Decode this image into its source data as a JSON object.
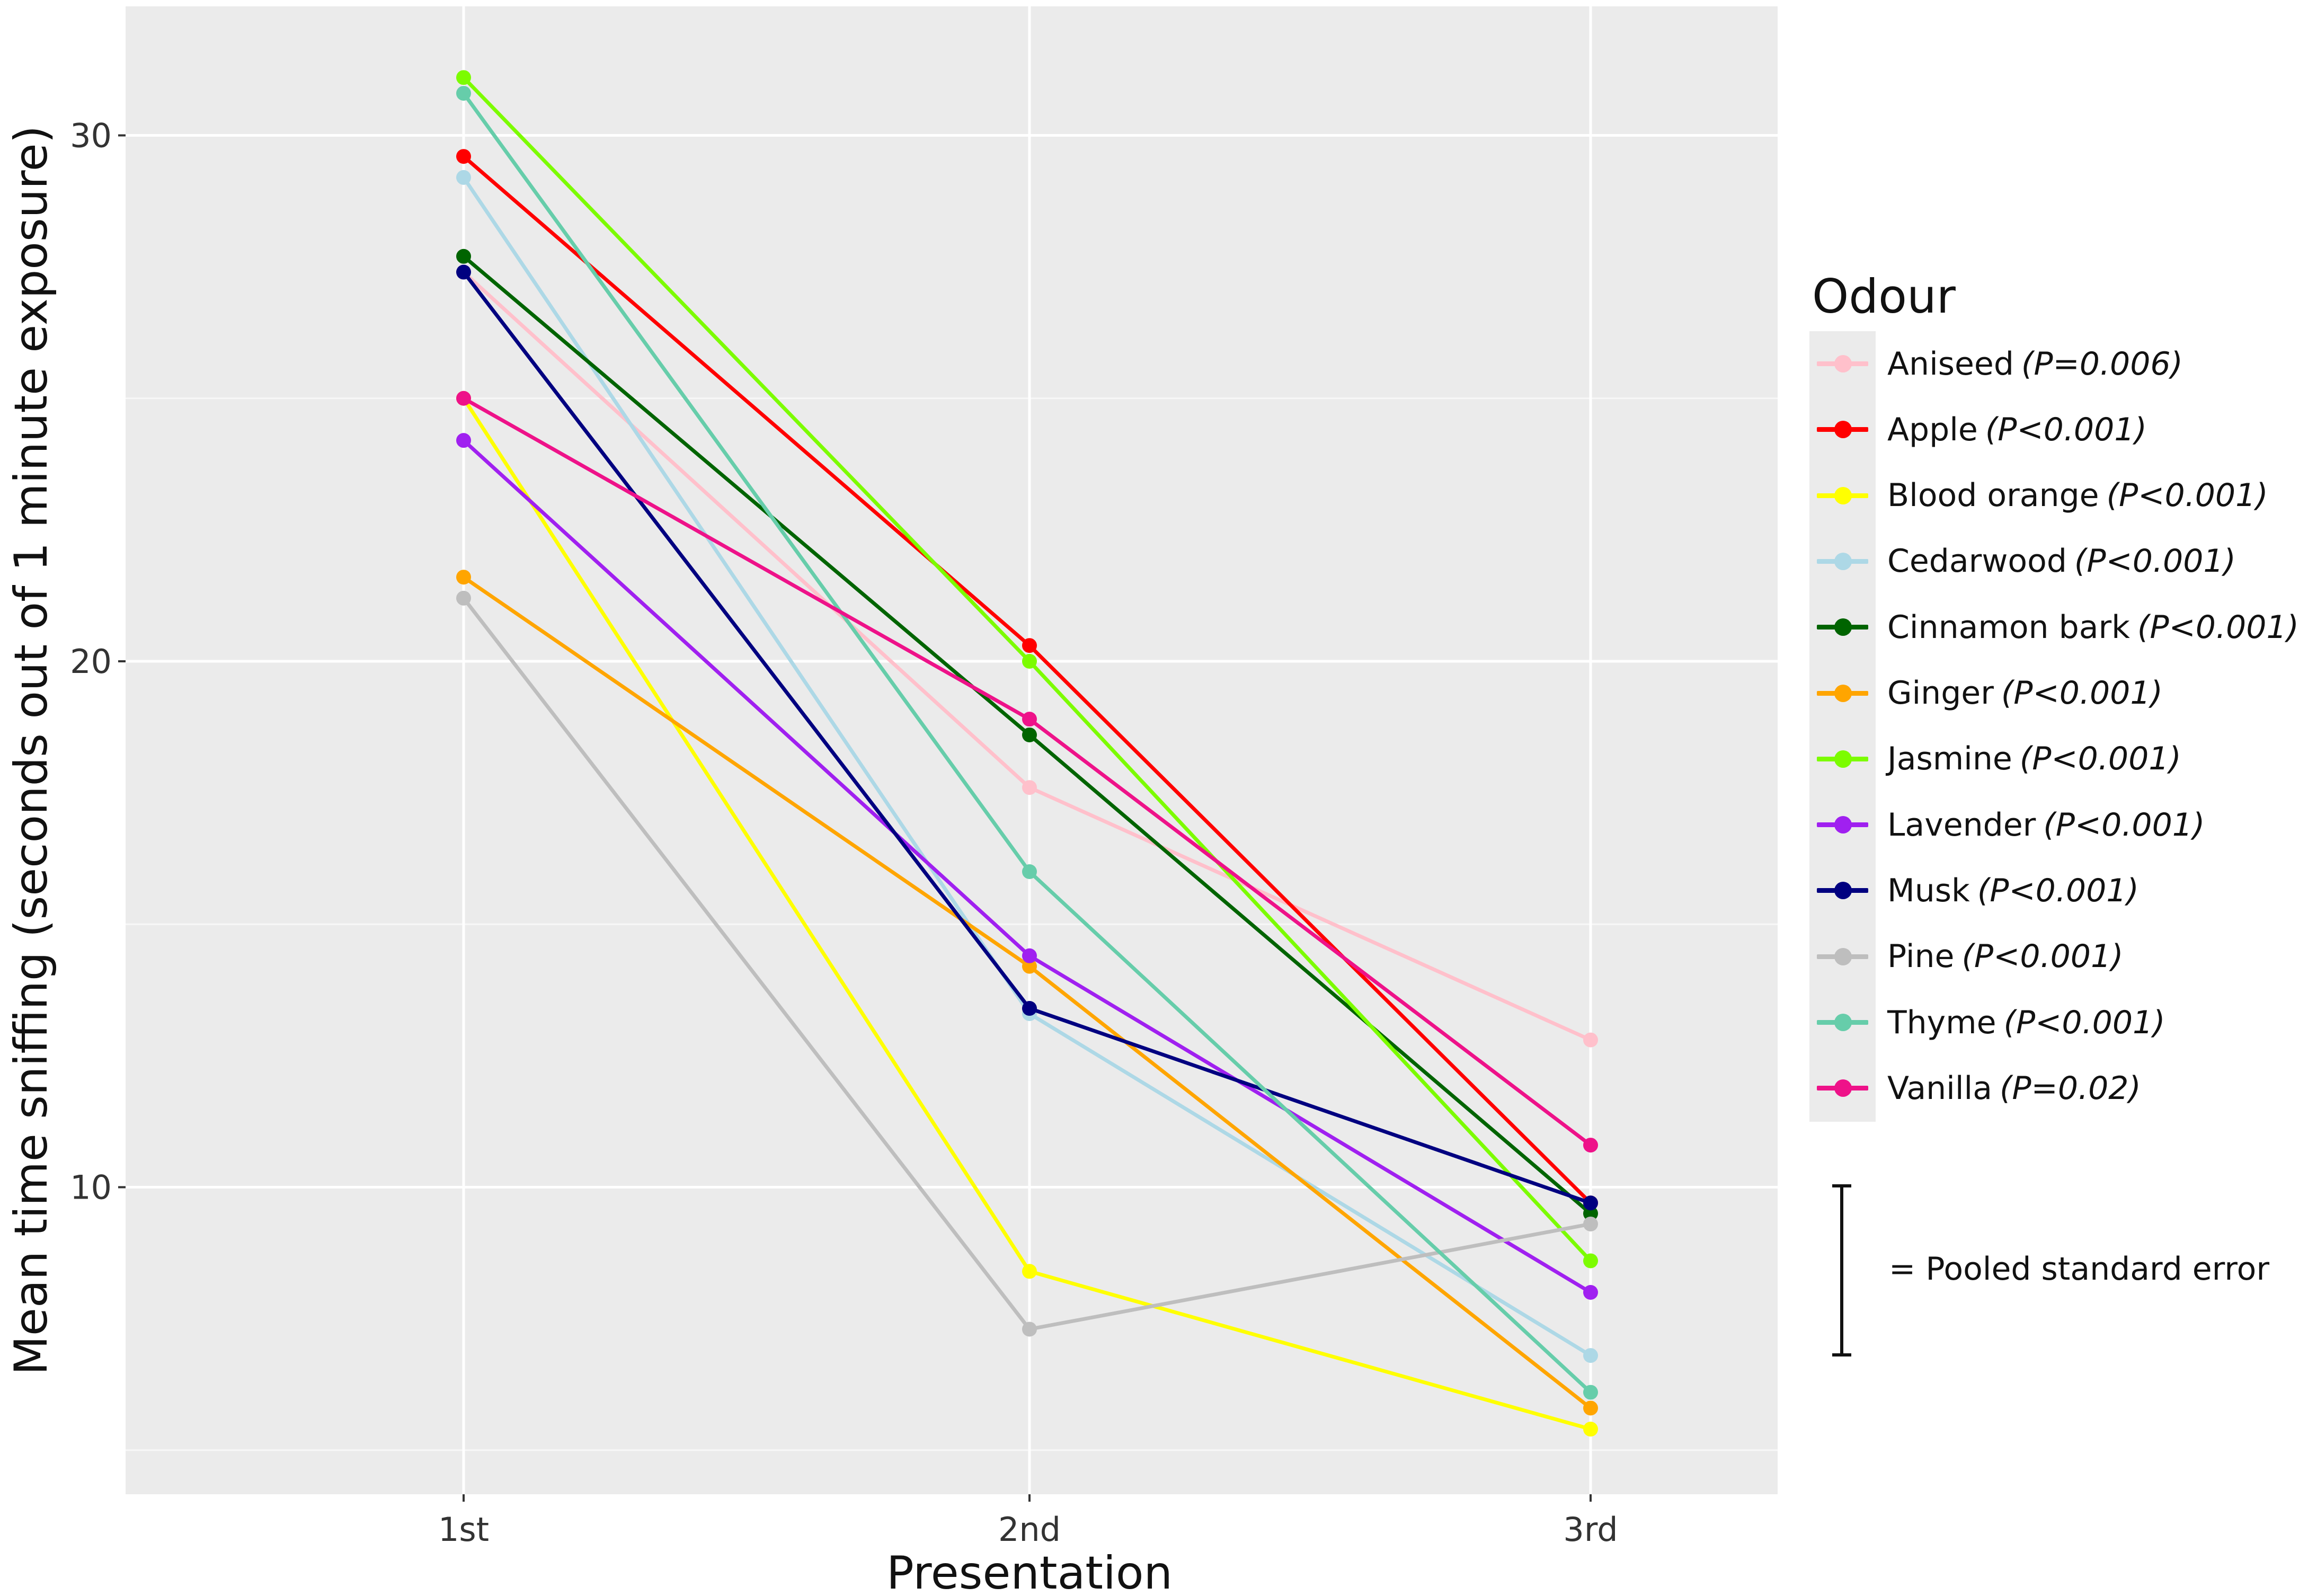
{
  "chart_data": {
    "type": "line",
    "title": "",
    "xlabel": "Presentation",
    "ylabel": "Mean time sniffing (seconds out of 1 minute exposure)",
    "categories": [
      "1st",
      "2nd",
      "3rd"
    ],
    "y_ticks": [
      10,
      20,
      30
    ],
    "ylim": [
      4.5,
      32.5
    ],
    "grid": true,
    "legend_position": "right",
    "legend_title": "Odour",
    "series": [
      {
        "name": "Aniseed",
        "p": "(P=0.006)",
        "color": "#FFC0CB",
        "values": [
          27.4,
          17.6,
          12.8
        ]
      },
      {
        "name": "Apple",
        "p": "(P<0.001)",
        "color": "#FF0000",
        "values": [
          29.6,
          20.3,
          9.7
        ]
      },
      {
        "name": "Blood orange",
        "p": "(P<0.001)",
        "color": "#FFFF00",
        "values": [
          25.0,
          8.4,
          5.4
        ]
      },
      {
        "name": "Cedarwood",
        "p": "(P<0.001)",
        "color": "#ADD8E6",
        "values": [
          29.2,
          13.3,
          6.8
        ]
      },
      {
        "name": "Cinnamon bark",
        "p": "(P<0.001)",
        "color": "#006400",
        "values": [
          27.7,
          18.6,
          9.5
        ]
      },
      {
        "name": "Ginger",
        "p": "(P<0.001)",
        "color": "#FFA500",
        "values": [
          21.6,
          14.2,
          5.8
        ]
      },
      {
        "name": "Jasmine",
        "p": "(P<0.001)",
        "color": "#7CFC00",
        "values": [
          31.1,
          20.0,
          8.6
        ]
      },
      {
        "name": "Lavender",
        "p": "(P<0.001)",
        "color": "#A020F0",
        "values": [
          24.2,
          14.4,
          8.0
        ]
      },
      {
        "name": "Musk",
        "p": "(P<0.001)",
        "color": "#000080",
        "values": [
          27.4,
          13.4,
          9.7
        ]
      },
      {
        "name": "Pine",
        "p": "(P<0.001)",
        "color": "#BEBEBE",
        "values": [
          21.2,
          7.3,
          9.3
        ]
      },
      {
        "name": "Thyme",
        "p": "(P<0.001)",
        "color": "#66CDAA",
        "values": [
          30.8,
          16.0,
          6.1
        ]
      },
      {
        "name": "Vanilla",
        "p": "(P=0.02)",
        "color": "#EE1289",
        "values": [
          25.0,
          18.9,
          10.8
        ]
      }
    ],
    "pooled_se": {
      "label": "= Pooled standard error",
      "span": 3.3
    }
  }
}
